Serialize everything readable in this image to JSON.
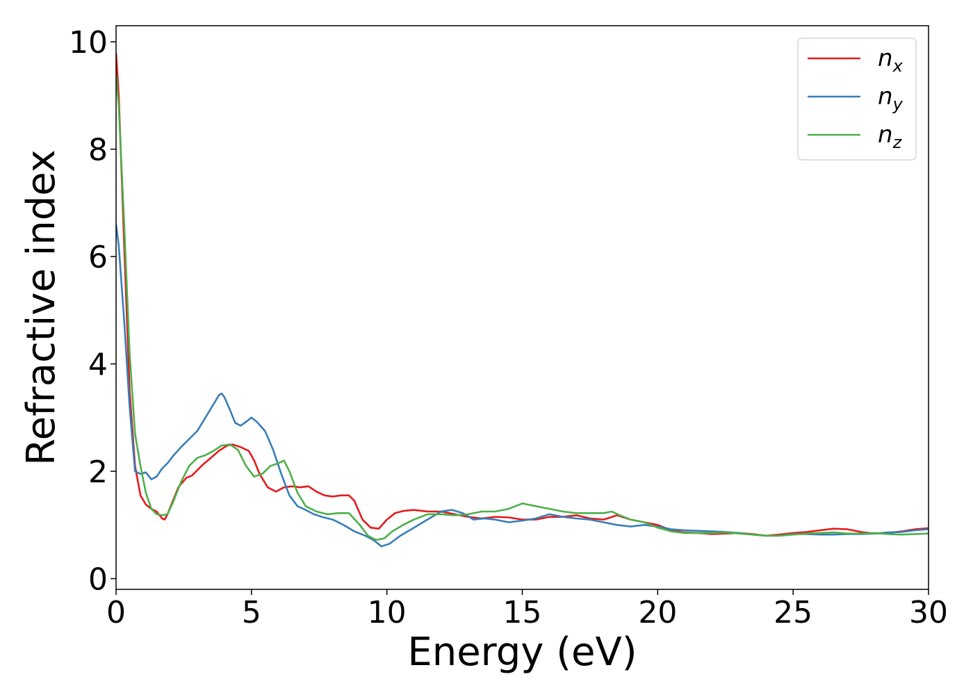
{
  "chart_data": {
    "type": "line",
    "title": "",
    "xlabel": "Energy (eV)",
    "ylabel": "Refractive index",
    "xlim": [
      0,
      30
    ],
    "ylim": [
      -0.2,
      10.3
    ],
    "xticks": [
      0,
      5,
      10,
      15,
      20,
      25,
      30
    ],
    "yticks": [
      0,
      2,
      4,
      6,
      8,
      10
    ],
    "grid": false,
    "legend_position": "top-right",
    "series": [
      {
        "name": "n",
        "subscript": "x",
        "color": "#e41a1c",
        "x": [
          0,
          0.1,
          0.3,
          0.5,
          0.7,
          0.9,
          1.1,
          1.3,
          1.5,
          1.7,
          1.8,
          1.9,
          2.1,
          2.3,
          2.6,
          2.8,
          3.0,
          3.2,
          3.5,
          3.8,
          4.1,
          4.3,
          4.6,
          4.9,
          5.1,
          5.3,
          5.6,
          5.9,
          6.2,
          6.5,
          6.8,
          7.1,
          7.4,
          7.7,
          8.0,
          8.3,
          8.6,
          8.8,
          9.1,
          9.4,
          9.7,
          10.0,
          10.3,
          10.6,
          11.0,
          11.5,
          12.0,
          12.5,
          13.0,
          13.5,
          14.0,
          14.5,
          15.0,
          15.5,
          16.0,
          16.5,
          17.0,
          17.5,
          18.0,
          18.5,
          19.0,
          19.5,
          20.0,
          20.5,
          21.0,
          21.5,
          22.0,
          22.5,
          23.0,
          23.5,
          24.0,
          24.5,
          25.0,
          25.5,
          26.0,
          26.5,
          27.0,
          27.5,
          28.0,
          28.5,
          29.0,
          29.5,
          30.0
        ],
        "y": [
          9.8,
          9.0,
          6.2,
          3.5,
          2.1,
          1.55,
          1.38,
          1.3,
          1.25,
          1.12,
          1.1,
          1.2,
          1.45,
          1.7,
          1.88,
          1.92,
          2.02,
          2.12,
          2.25,
          2.38,
          2.48,
          2.5,
          2.45,
          2.38,
          2.2,
          1.95,
          1.7,
          1.62,
          1.7,
          1.72,
          1.7,
          1.72,
          1.62,
          1.55,
          1.53,
          1.55,
          1.55,
          1.45,
          1.1,
          0.95,
          0.93,
          1.1,
          1.22,
          1.26,
          1.28,
          1.25,
          1.25,
          1.2,
          1.15,
          1.12,
          1.15,
          1.14,
          1.1,
          1.1,
          1.15,
          1.15,
          1.18,
          1.12,
          1.1,
          1.18,
          1.1,
          1.05,
          1.0,
          0.9,
          0.86,
          0.85,
          0.83,
          0.84,
          0.85,
          0.83,
          0.8,
          0.82,
          0.85,
          0.87,
          0.9,
          0.93,
          0.92,
          0.87,
          0.84,
          0.85,
          0.88,
          0.92,
          0.94
        ]
      },
      {
        "name": "n",
        "subscript": "y",
        "color": "#377eb8",
        "x": [
          0,
          0.1,
          0.3,
          0.5,
          0.7,
          0.9,
          1.1,
          1.3,
          1.5,
          1.7,
          1.9,
          2.1,
          2.4,
          2.7,
          3.0,
          3.3,
          3.6,
          3.8,
          3.9,
          4.0,
          4.2,
          4.4,
          4.6,
          4.8,
          5.0,
          5.2,
          5.5,
          5.8,
          6.1,
          6.4,
          6.7,
          7.0,
          7.3,
          7.6,
          8.0,
          8.4,
          8.8,
          9.2,
          9.5,
          9.8,
          10.1,
          10.5,
          11.0,
          11.5,
          12.0,
          12.4,
          12.8,
          13.2,
          13.6,
          14.0,
          14.5,
          15.0,
          15.5,
          16.0,
          16.5,
          17.0,
          17.5,
          18.0,
          18.5,
          19.0,
          19.5,
          20.0,
          20.5,
          21.0,
          21.5,
          22.0,
          22.5,
          23.0,
          23.5,
          24.0,
          24.5,
          25.0,
          25.5,
          26.0,
          26.5,
          27.0,
          27.5,
          28.0,
          28.5,
          29.0,
          29.5,
          30.0
        ],
        "y": [
          6.6,
          6.2,
          4.8,
          3.2,
          2.0,
          1.95,
          1.98,
          1.85,
          1.9,
          2.05,
          2.15,
          2.28,
          2.45,
          2.6,
          2.75,
          3.0,
          3.25,
          3.42,
          3.45,
          3.38,
          3.15,
          2.9,
          2.85,
          2.92,
          3.0,
          2.92,
          2.75,
          2.4,
          1.95,
          1.55,
          1.35,
          1.28,
          1.2,
          1.15,
          1.1,
          1.0,
          0.88,
          0.8,
          0.72,
          0.6,
          0.65,
          0.8,
          0.95,
          1.1,
          1.25,
          1.28,
          1.22,
          1.1,
          1.12,
          1.1,
          1.05,
          1.08,
          1.12,
          1.2,
          1.15,
          1.12,
          1.1,
          1.05,
          1.0,
          0.97,
          1.0,
          0.97,
          0.92,
          0.9,
          0.89,
          0.88,
          0.87,
          0.85,
          0.82,
          0.8,
          0.8,
          0.83,
          0.83,
          0.82,
          0.82,
          0.83,
          0.83,
          0.84,
          0.86,
          0.87,
          0.9,
          0.92
        ]
      },
      {
        "name": "n",
        "subscript": "z",
        "color": "#4daf4a",
        "x": [
          0,
          0.1,
          0.3,
          0.5,
          0.7,
          0.9,
          1.1,
          1.3,
          1.5,
          1.7,
          1.9,
          2.1,
          2.4,
          2.7,
          3.0,
          3.3,
          3.6,
          3.9,
          4.2,
          4.5,
          4.8,
          5.1,
          5.4,
          5.7,
          6.0,
          6.2,
          6.4,
          6.7,
          7.0,
          7.4,
          7.8,
          8.2,
          8.6,
          9.0,
          9.3,
          9.6,
          9.9,
          10.2,
          10.6,
          11.0,
          11.5,
          12.0,
          12.5,
          13.0,
          13.5,
          14.0,
          14.5,
          15.0,
          15.5,
          16.0,
          16.5,
          17.0,
          17.5,
          18.0,
          18.3,
          18.6,
          19.0,
          19.5,
          20.0,
          20.5,
          21.0,
          21.5,
          22.0,
          22.5,
          23.0,
          23.5,
          24.0,
          24.5,
          25.0,
          25.5,
          26.0,
          26.5,
          27.0,
          27.5,
          28.0,
          28.5,
          29.0,
          29.5,
          30.0
        ],
        "y": [
          9.4,
          8.8,
          6.6,
          4.2,
          2.7,
          2.1,
          1.6,
          1.3,
          1.2,
          1.18,
          1.2,
          1.42,
          1.8,
          2.1,
          2.25,
          2.3,
          2.38,
          2.48,
          2.5,
          2.4,
          2.1,
          1.9,
          1.95,
          2.1,
          2.15,
          2.2,
          2.0,
          1.6,
          1.35,
          1.25,
          1.2,
          1.22,
          1.22,
          1.0,
          0.8,
          0.72,
          0.75,
          0.88,
          1.0,
          1.1,
          1.2,
          1.2,
          1.18,
          1.2,
          1.25,
          1.25,
          1.3,
          1.4,
          1.35,
          1.3,
          1.25,
          1.22,
          1.22,
          1.22,
          1.25,
          1.18,
          1.1,
          1.05,
          0.95,
          0.88,
          0.85,
          0.85,
          0.85,
          0.86,
          0.84,
          0.82,
          0.8,
          0.8,
          0.82,
          0.84,
          0.85,
          0.86,
          0.84,
          0.84,
          0.85,
          0.83,
          0.82,
          0.83,
          0.84
        ]
      }
    ]
  }
}
